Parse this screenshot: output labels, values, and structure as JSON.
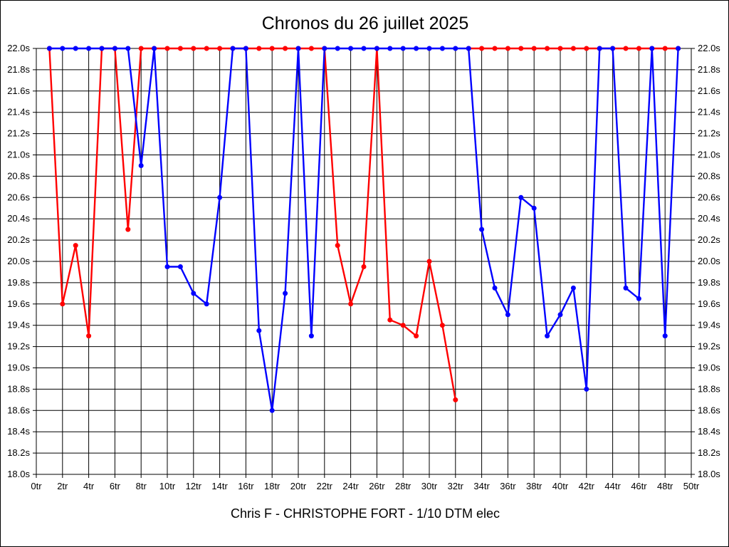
{
  "title": "Chronos du 26 juillet 2025",
  "caption": "Chris F - CHRISTOPHE FORT - 1/10 DTM elec",
  "chart_data": {
    "type": "line",
    "title": "Chronos du 26 juillet 2025",
    "subtitle": "Chris F - CHRISTOPHE FORT - 1/10 DTM elec",
    "x_unit": "tr",
    "y_unit": "s",
    "x_range": [
      0,
      50
    ],
    "y_range": [
      18.0,
      22.0
    ],
    "x_tick_step": 2,
    "y_tick_step": 0.2,
    "grid": "on",
    "legend": "none",
    "x_tick_labels": [
      "0tr",
      "2tr",
      "4tr",
      "6tr",
      "8tr",
      "10tr",
      "12tr",
      "14tr",
      "16tr",
      "18tr",
      "20tr",
      "22tr",
      "24tr",
      "26tr",
      "28tr",
      "30tr",
      "32tr",
      "34tr",
      "36tr",
      "38tr",
      "40tr",
      "42tr",
      "44tr",
      "46tr",
      "48tr",
      "50tr"
    ],
    "y_tick_labels": [
      "22.0s",
      "21.8s",
      "21.6s",
      "21.4s",
      "21.2s",
      "21.0s",
      "20.8s",
      "20.6s",
      "20.4s",
      "20.2s",
      "20.0s",
      "19.8s",
      "19.6s",
      "19.4s",
      "19.2s",
      "19.0s",
      "18.8s",
      "18.6s",
      "18.4s",
      "18.2s",
      "18.0s"
    ],
    "laps_start": 1,
    "series": [
      {
        "name": "red-series",
        "color": "#ff0000",
        "breaks_after_lap": [
          32
        ],
        "values": [
          22.0,
          19.6,
          20.15,
          19.3,
          22.0,
          22.0,
          20.3,
          22.0,
          22.0,
          22.0,
          22.0,
          22.0,
          22.0,
          22.0,
          22.0,
          22.0,
          22.0,
          22.0,
          22.0,
          22.0,
          22.0,
          22.0,
          20.15,
          19.6,
          19.95,
          22.0,
          19.45,
          19.4,
          19.3,
          20.0,
          19.4,
          18.7,
          22.0,
          22.0,
          22.0,
          22.0,
          22.0,
          22.0,
          22.0,
          22.0,
          22.0,
          22.0,
          22.0,
          22.0,
          22.0,
          22.0,
          22.0,
          22.0,
          22.0
        ]
      },
      {
        "name": "blue-series",
        "color": "#0000ff",
        "breaks_after_lap": [],
        "values": [
          22.0,
          22.0,
          22.0,
          22.0,
          22.0,
          22.0,
          22.0,
          20.9,
          22.0,
          19.95,
          19.95,
          19.7,
          19.6,
          20.6,
          22.0,
          22.0,
          19.35,
          18.6,
          19.7,
          22.0,
          19.3,
          22.0,
          22.0,
          22.0,
          22.0,
          22.0,
          22.0,
          22.0,
          22.0,
          22.0,
          22.0,
          22.0,
          22.0,
          20.3,
          19.75,
          19.5,
          20.6,
          20.5,
          19.3,
          19.5,
          19.75,
          18.8,
          22.0,
          22.0,
          19.75,
          19.65,
          22.0,
          19.3,
          22.0
        ]
      }
    ]
  }
}
